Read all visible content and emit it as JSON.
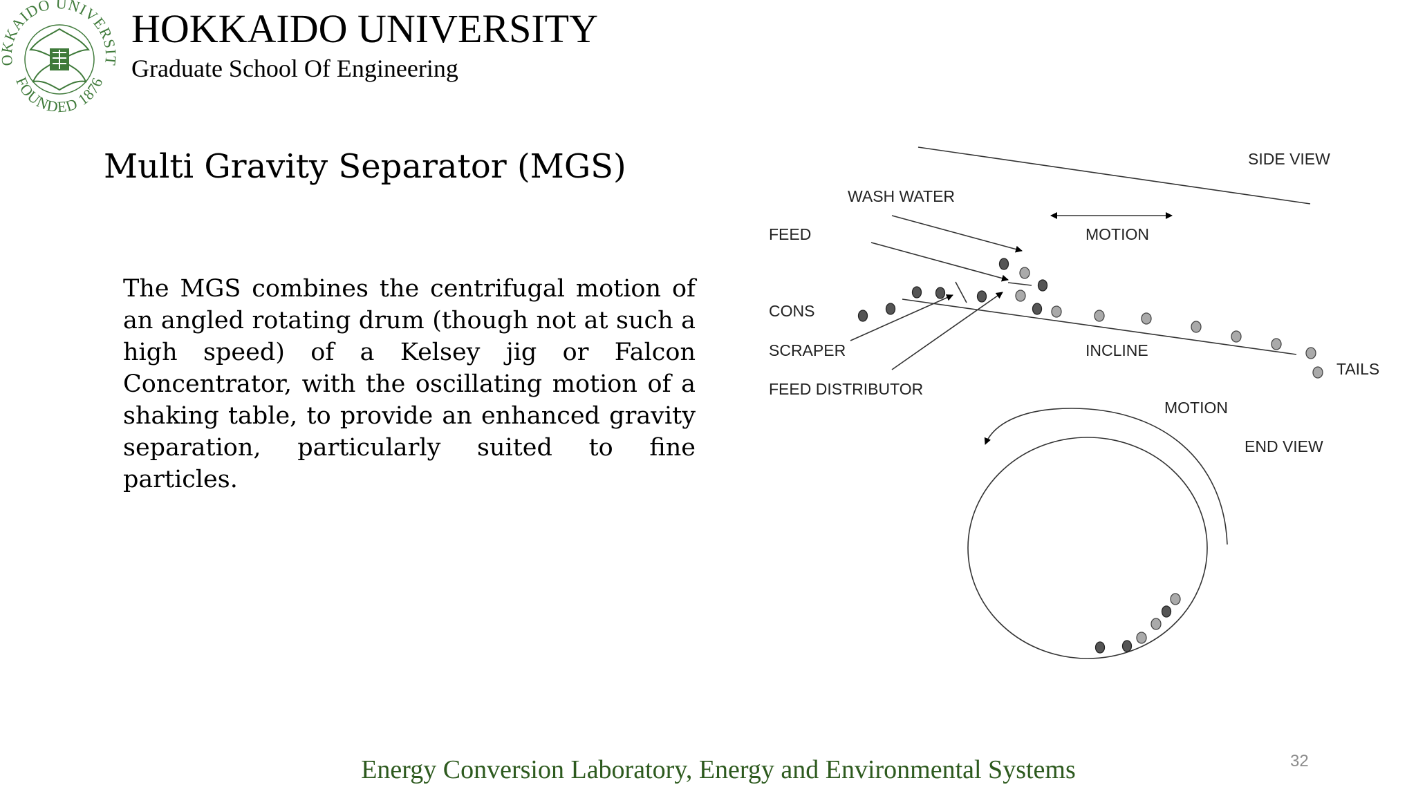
{
  "header": {
    "university": "HOKKAIDO UNIVERSITY",
    "school": "Graduate School Of Engineering",
    "seal": {
      "top_text": "HOKKAIDO UNIVERSITY",
      "bottom_text": "FOUNDED 1876",
      "color": "#3f7a3a"
    }
  },
  "slide": {
    "title": "Multi Gravity Separator (MGS)",
    "body": "The MGS combines the centrifugal motion of an angled rotating drum (though not at such a high speed) of a Kelsey jig or Falcon Concentrator, with the oscillating motion of a shaking table, to provide an enhanced gravity separation, particularly suited to fine particles."
  },
  "diagram": {
    "labels": {
      "side_view": "SIDE VIEW",
      "wash_water": "WASH WATER",
      "motion_side": "MOTION",
      "feed": "FEED",
      "cons": "CONS",
      "scraper": "SCRAPER",
      "incline": "INCLINE",
      "tails": "TAILS",
      "feed_distributor": "FEED DISTRIBUTOR",
      "motion_end": "MOTION",
      "end_view": "END VIEW"
    }
  },
  "footer": {
    "lab": "Energy Conversion Laboratory, Energy and Environmental Systems",
    "page_number": "32",
    "text_color": "#2d5a1e"
  }
}
